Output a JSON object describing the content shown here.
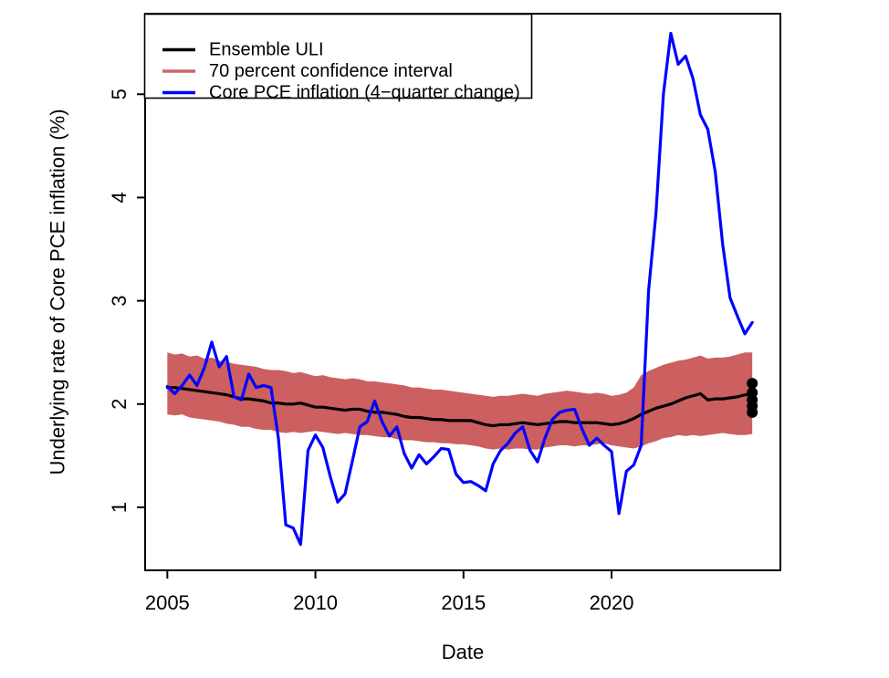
{
  "chart_data": {
    "type": "line",
    "title": "",
    "xlabel": "Date",
    "ylabel": "Underlying rate of Core PCE inflation (%)",
    "xlim": [
      2004.25,
      2025.7
    ],
    "ylim": [
      0.39,
      5.78
    ],
    "xticks": [
      2005,
      2010,
      2015,
      2020
    ],
    "yticks": [
      1,
      2,
      3,
      4,
      5
    ],
    "grid": "off",
    "legend_position": "top-left",
    "x": [
      2005.0,
      2005.25,
      2005.5,
      2005.75,
      2006.0,
      2006.25,
      2006.5,
      2006.75,
      2007.0,
      2007.25,
      2007.5,
      2007.75,
      2008.0,
      2008.25,
      2008.5,
      2008.75,
      2009.0,
      2009.25,
      2009.5,
      2009.75,
      2010.0,
      2010.25,
      2010.5,
      2010.75,
      2011.0,
      2011.25,
      2011.5,
      2011.75,
      2012.0,
      2012.25,
      2012.5,
      2012.75,
      2013.0,
      2013.25,
      2013.5,
      2013.75,
      2014.0,
      2014.25,
      2014.5,
      2014.75,
      2015.0,
      2015.25,
      2015.5,
      2015.75,
      2016.0,
      2016.25,
      2016.5,
      2016.75,
      2017.0,
      2017.25,
      2017.5,
      2017.75,
      2018.0,
      2018.25,
      2018.5,
      2018.75,
      2019.0,
      2019.25,
      2019.5,
      2019.75,
      2020.0,
      2020.25,
      2020.5,
      2020.75,
      2021.0,
      2021.25,
      2021.5,
      2021.75,
      2022.0,
      2022.25,
      2022.5,
      2022.75,
      2023.0,
      2023.25,
      2023.5,
      2023.75,
      2024.0,
      2024.25,
      2024.5,
      2024.75
    ],
    "series": [
      {
        "name": "Ensemble ULI",
        "color": "#000000",
        "values": [
          2.16,
          2.16,
          2.15,
          2.14,
          2.13,
          2.12,
          2.11,
          2.1,
          2.09,
          2.07,
          2.05,
          2.05,
          2.04,
          2.03,
          2.01,
          2.01,
          2.0,
          2.0,
          2.01,
          1.99,
          1.97,
          1.97,
          1.96,
          1.95,
          1.94,
          1.95,
          1.95,
          1.93,
          1.92,
          1.92,
          1.91,
          1.9,
          1.88,
          1.87,
          1.87,
          1.86,
          1.85,
          1.85,
          1.84,
          1.84,
          1.84,
          1.84,
          1.82,
          1.8,
          1.79,
          1.8,
          1.8,
          1.81,
          1.82,
          1.81,
          1.8,
          1.81,
          1.82,
          1.83,
          1.83,
          1.82,
          1.82,
          1.82,
          1.82,
          1.81,
          1.8,
          1.81,
          1.83,
          1.86,
          1.9,
          1.93,
          1.96,
          1.98,
          2.0,
          2.03,
          2.06,
          2.08,
          2.1,
          2.04,
          2.05,
          2.05,
          2.06,
          2.07,
          2.09,
          2.09
        ]
      },
      {
        "name": "Core PCE inflation (4−quarter change)",
        "color": "#0000FF",
        "values": [
          2.17,
          2.1,
          2.18,
          2.28,
          2.18,
          2.35,
          2.6,
          2.36,
          2.46,
          2.07,
          2.04,
          2.29,
          2.16,
          2.18,
          2.16,
          1.67,
          0.83,
          0.8,
          0.64,
          1.55,
          1.7,
          1.58,
          1.3,
          1.05,
          1.13,
          1.45,
          1.78,
          1.83,
          2.03,
          1.83,
          1.69,
          1.78,
          1.52,
          1.38,
          1.51,
          1.42,
          1.49,
          1.57,
          1.56,
          1.32,
          1.24,
          1.25,
          1.21,
          1.16,
          1.42,
          1.55,
          1.62,
          1.72,
          1.78,
          1.55,
          1.44,
          1.67,
          1.85,
          1.92,
          1.94,
          1.95,
          1.76,
          1.6,
          1.67,
          1.6,
          1.54,
          0.94,
          1.35,
          1.41,
          1.6,
          3.1,
          3.85,
          5.0,
          5.59,
          5.29,
          5.37,
          5.15,
          4.8,
          4.66,
          4.25,
          3.55,
          3.03,
          2.85,
          2.68,
          2.79
        ]
      }
    ],
    "band": {
      "name": "70 percent confidence interval",
      "color": "#CC5F5F",
      "upper": [
        2.5,
        2.48,
        2.49,
        2.46,
        2.47,
        2.44,
        2.45,
        2.42,
        2.41,
        2.39,
        2.38,
        2.37,
        2.36,
        2.34,
        2.33,
        2.33,
        2.32,
        2.3,
        2.31,
        2.29,
        2.27,
        2.28,
        2.26,
        2.25,
        2.24,
        2.25,
        2.24,
        2.22,
        2.22,
        2.21,
        2.2,
        2.19,
        2.18,
        2.16,
        2.16,
        2.15,
        2.14,
        2.14,
        2.13,
        2.12,
        2.11,
        2.1,
        2.09,
        2.08,
        2.07,
        2.08,
        2.08,
        2.09,
        2.1,
        2.09,
        2.08,
        2.1,
        2.11,
        2.12,
        2.13,
        2.12,
        2.11,
        2.1,
        2.11,
        2.1,
        2.08,
        2.09,
        2.11,
        2.16,
        2.28,
        2.32,
        2.35,
        2.38,
        2.4,
        2.42,
        2.43,
        2.45,
        2.47,
        2.44,
        2.45,
        2.45,
        2.46,
        2.48,
        2.5,
        2.5
      ],
      "lower": [
        1.9,
        1.89,
        1.9,
        1.87,
        1.86,
        1.85,
        1.84,
        1.83,
        1.81,
        1.8,
        1.78,
        1.78,
        1.76,
        1.75,
        1.75,
        1.73,
        1.72,
        1.73,
        1.72,
        1.73,
        1.74,
        1.73,
        1.72,
        1.71,
        1.72,
        1.71,
        1.7,
        1.7,
        1.69,
        1.68,
        1.68,
        1.66,
        1.65,
        1.65,
        1.64,
        1.63,
        1.63,
        1.62,
        1.62,
        1.61,
        1.61,
        1.6,
        1.59,
        1.57,
        1.56,
        1.57,
        1.56,
        1.57,
        1.57,
        1.56,
        1.56,
        1.58,
        1.59,
        1.6,
        1.6,
        1.59,
        1.6,
        1.6,
        1.61,
        1.62,
        1.6,
        1.59,
        1.58,
        1.57,
        1.59,
        1.62,
        1.64,
        1.67,
        1.68,
        1.7,
        1.69,
        1.7,
        1.69,
        1.7,
        1.71,
        1.72,
        1.71,
        1.7,
        1.7,
        1.71
      ]
    },
    "end_dots": {
      "x": 2024.75,
      "values": [
        2.2,
        2.11,
        2.04,
        1.98,
        1.92
      ],
      "color": "#000000"
    },
    "legend": {
      "entries": [
        {
          "label": "Ensemble ULI",
          "color": "#000000"
        },
        {
          "label": "70 percent confidence interval",
          "color": "#CD6666"
        },
        {
          "label": "Core PCE inflation (4−quarter change)",
          "color": "#0000FF"
        }
      ]
    }
  }
}
